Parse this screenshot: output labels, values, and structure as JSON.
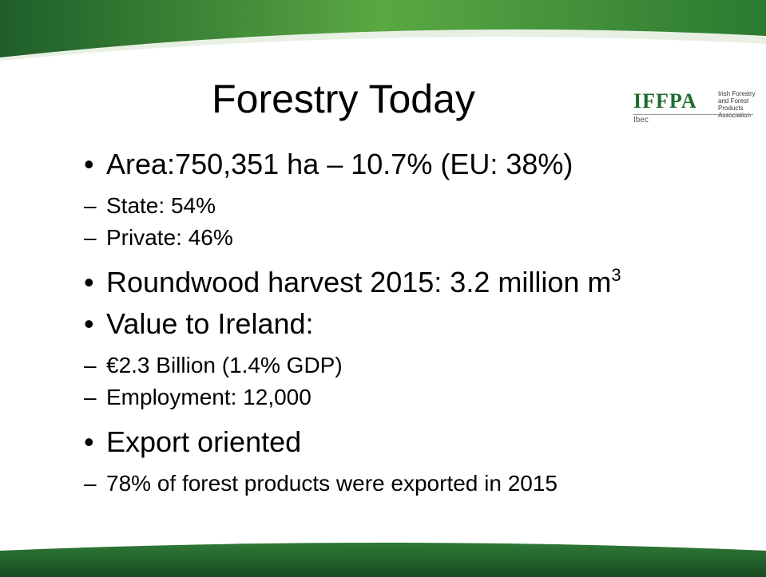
{
  "title": "Forestry Today",
  "logo": {
    "acronym": "IFFPA",
    "name_lines": [
      "Irish Forestry",
      "and Forest",
      "Products",
      "Association"
    ],
    "parent": "Ibec"
  },
  "bullets": [
    {
      "text": "Area:750,351 ha – 10.7% (EU: 38%)",
      "sub": [
        "State: 54%",
        "Private: 46%"
      ]
    },
    {
      "text": "Roundwood harvest 2015: 3.2 million m",
      "superscript": "3"
    },
    {
      "text": "Value to Ireland:",
      "sub": [
        "€2.3 Billion (1.4% GDP)",
        "Employment: 12,000"
      ]
    },
    {
      "text": "Export oriented",
      "sub": [
        "78% of forest products were exported in 2015"
      ]
    }
  ]
}
